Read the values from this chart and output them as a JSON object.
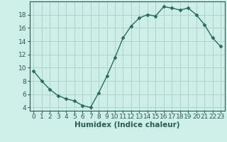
{
  "x": [
    0,
    1,
    2,
    3,
    4,
    5,
    6,
    7,
    8,
    9,
    10,
    11,
    12,
    13,
    14,
    15,
    16,
    17,
    18,
    19,
    20,
    21,
    22,
    23
  ],
  "y": [
    9.5,
    8.0,
    6.7,
    5.8,
    5.3,
    5.0,
    4.3,
    4.0,
    6.2,
    8.7,
    11.5,
    14.5,
    16.3,
    17.5,
    18.0,
    17.8,
    19.2,
    19.0,
    18.7,
    19.0,
    18.0,
    16.5,
    14.5,
    13.2
  ],
  "line_color": "#2a6b5e",
  "marker": "D",
  "marker_size": 2.5,
  "bg_color": "#ceeee8",
  "grid_color": "#b0d4cc",
  "xlabel": "Humidex (Indice chaleur)",
  "xlim": [
    -0.5,
    23.5
  ],
  "ylim": [
    3.5,
    20.0
  ],
  "yticks": [
    4,
    6,
    8,
    10,
    12,
    14,
    16,
    18
  ],
  "xticks": [
    0,
    1,
    2,
    3,
    4,
    5,
    6,
    7,
    8,
    9,
    10,
    11,
    12,
    13,
    14,
    15,
    16,
    17,
    18,
    19,
    20,
    21,
    22,
    23
  ],
  "tick_fontsize": 6.5,
  "label_fontsize": 7.5,
  "line_width": 1.0,
  "axis_color": "#2a5a52"
}
